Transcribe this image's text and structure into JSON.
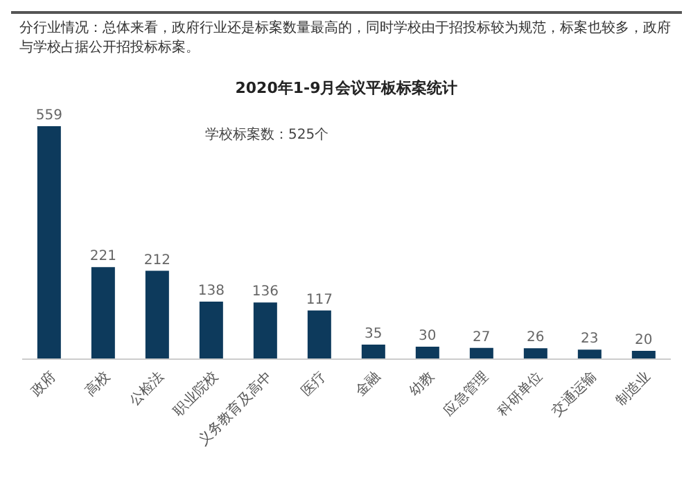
{
  "chart_data": {
    "type": "bar",
    "title": "2020年1-9月会议平板标案统计",
    "categories": [
      "政府",
      "高校",
      "公检法",
      "职业院校",
      "义务教育及高中",
      "医疗",
      "金融",
      "幼教",
      "应急管理",
      "科研单位",
      "交通运输",
      "制造业"
    ],
    "values": [
      559,
      221,
      212,
      138,
      136,
      117,
      35,
      30,
      27,
      26,
      23,
      20
    ],
    "color": "#0d3a5c",
    "data_labels": true,
    "grid": false,
    "legend": false,
    "annotations": [
      "分行业情况：总体来看，政府行业还是标案数量最高的，同时学校由于招投标较为规范，标案也较多，政府与学校占据公开招投标标案。",
      "学校标案数：525个"
    ]
  }
}
